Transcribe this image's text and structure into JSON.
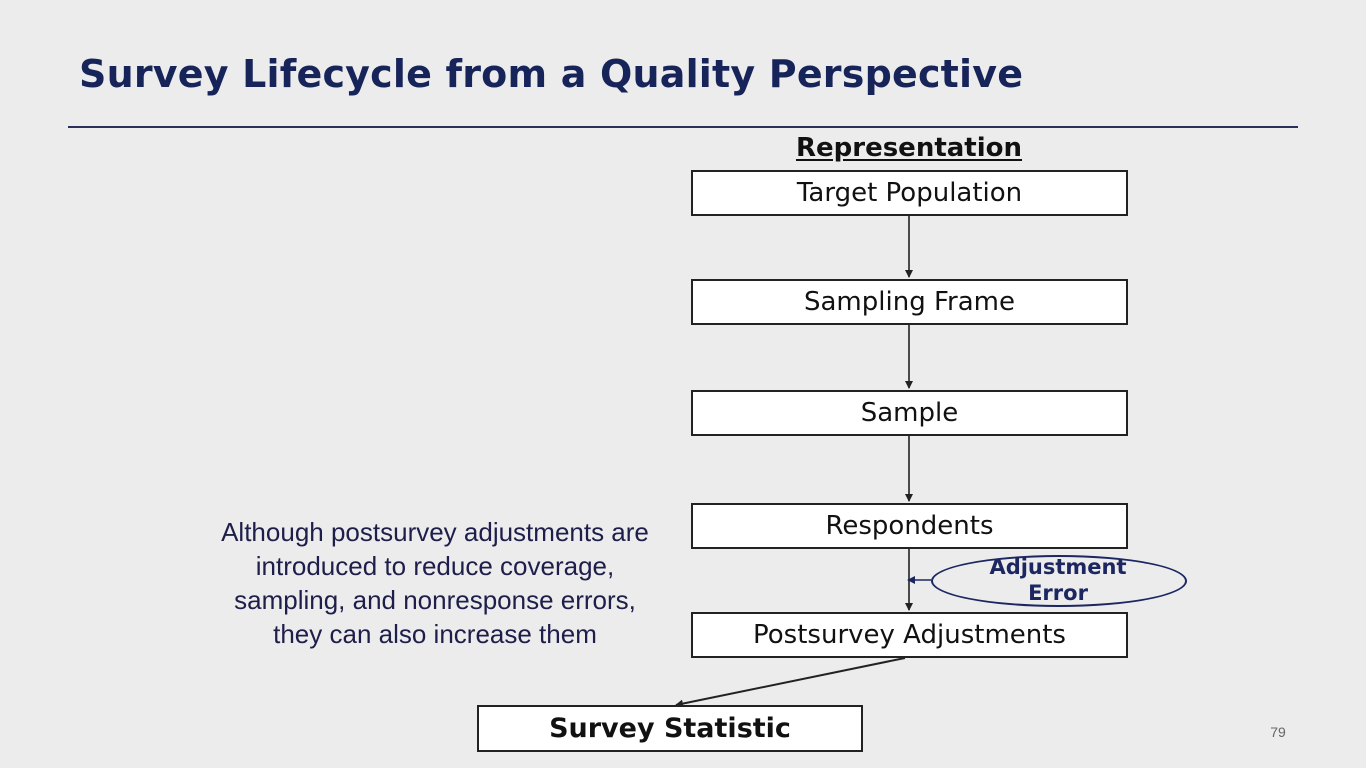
{
  "slide": {
    "title": "Survey Lifecycle from a Quality Perspective",
    "page_number": "79"
  },
  "diagram": {
    "heading": "Representation",
    "steps": [
      "Target Population",
      "Sampling Frame",
      "Sample",
      "Respondents",
      "Postsurvey Adjustments"
    ],
    "result": "Survey Statistic",
    "error_label": {
      "line1": "Adjustment",
      "line2": "Error"
    }
  },
  "note": {
    "lines": [
      "Although postsurvey adjustments are",
      "introduced to reduce coverage,",
      "sampling, and nonresponse errors,",
      "they can also increase them"
    ]
  },
  "colors": {
    "title": "#17245a",
    "rule": "#2a2f5c",
    "error_ellipse": "#1c2660",
    "box_border": "#222222",
    "background": "#ececec"
  }
}
